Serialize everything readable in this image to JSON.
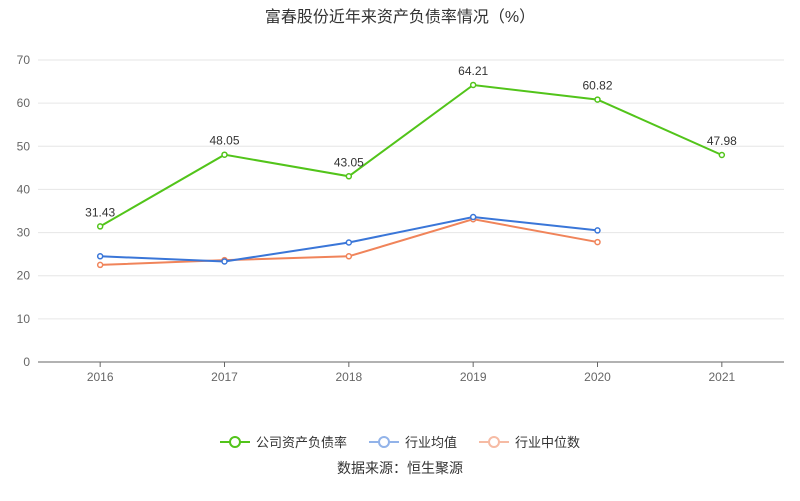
{
  "chart_data": {
    "type": "line",
    "title": "富春股份近年来资产负债率情况（%）",
    "categories": [
      "2016",
      "2017",
      "2018",
      "2019",
      "2020",
      "2021"
    ],
    "ylim": [
      0,
      70
    ],
    "yticks": [
      0,
      10,
      20,
      30,
      40,
      50,
      60,
      70
    ],
    "grid": true,
    "legend_position": "bottom",
    "series": [
      {
        "name": "公司资产负债率",
        "color": "#52c41a",
        "values": [
          31.43,
          48.05,
          43.05,
          64.21,
          60.82,
          47.98
        ],
        "labels": [
          "31.43",
          "48.05",
          "43.05",
          "64.21",
          "60.82",
          "47.98"
        ]
      },
      {
        "name": "行业均值",
        "color": "#3a76d8",
        "values": [
          24.5,
          23.3,
          27.7,
          33.6,
          30.5,
          null
        ]
      },
      {
        "name": "行业中位数",
        "color": "#f0845a",
        "values": [
          22.5,
          23.6,
          24.5,
          33.1,
          27.8,
          null
        ]
      }
    ],
    "source": "数据来源：恒生聚源"
  }
}
